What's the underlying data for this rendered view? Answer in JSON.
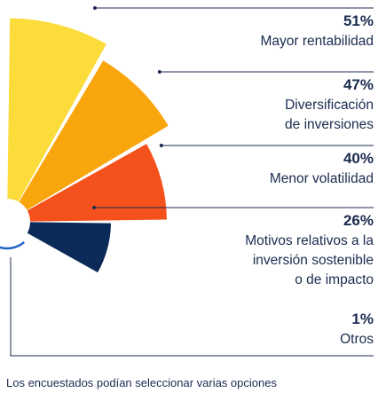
{
  "chart_data": {
    "type": "pie",
    "subtype": "polar-area (half rose)",
    "categories": [
      {
        "label_lines": [
          "Mayor rentabilidad"
        ],
        "value": 51,
        "value_label": "51%",
        "color": "#fbdc3b"
      },
      {
        "label_lines": [
          "Diversificación",
          "de inversiones"
        ],
        "value": 47,
        "value_label": "47%",
        "color": "#f9a50c"
      },
      {
        "label_lines": [
          "Menor volatilidad"
        ],
        "value": 40,
        "value_label": "40%",
        "color": "#f5511c"
      },
      {
        "label_lines": [
          "Motivos relativos a la",
          "inversión sostenible",
          "o de impacto"
        ],
        "value": 26,
        "value_label": "26%",
        "color": "#0c2a58"
      },
      {
        "label_lines": [
          "Otros"
        ],
        "value": 1,
        "value_label": "1%",
        "color": "#1e64c8"
      }
    ],
    "leader_line_color": "#1b2b4f",
    "text_color": "#1b2b4f",
    "note": "Los encuestados podían seleccionar varias opciones"
  }
}
